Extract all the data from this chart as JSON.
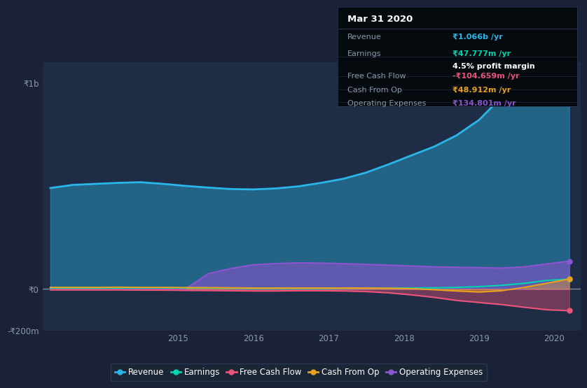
{
  "background_color": "#1b2237",
  "plot_bg_color": "#1e2d45",
  "title_box": {
    "date": "Mar 31 2020",
    "revenue_label": "Revenue",
    "revenue_value": "₹1.066b /yr",
    "earnings_label": "Earnings",
    "earnings_value": "₹47.777m /yr",
    "profit_margin": "4.5% profit margin",
    "fcf_label": "Free Cash Flow",
    "fcf_value": "-₹104.659m /yr",
    "cashop_label": "Cash From Op",
    "cashop_value": "₹48.912m /yr",
    "opex_label": "Operating Expenses",
    "opex_value": "₹134.801m /yr"
  },
  "years": [
    2013.3,
    2013.6,
    2013.9,
    2014.2,
    2014.5,
    2014.8,
    2015.1,
    2015.4,
    2015.7,
    2016.0,
    2016.3,
    2016.6,
    2016.9,
    2017.2,
    2017.5,
    2017.8,
    2018.1,
    2018.4,
    2018.7,
    2019.0,
    2019.3,
    2019.6,
    2019.9,
    2020.2
  ],
  "revenue": [
    490,
    505,
    510,
    515,
    518,
    510,
    500,
    492,
    485,
    483,
    488,
    498,
    515,
    535,
    565,
    605,
    648,
    690,
    745,
    820,
    930,
    1010,
    1060,
    1066
  ],
  "earnings": [
    5,
    5,
    5,
    5,
    6,
    6,
    5,
    5,
    4,
    3,
    3,
    3,
    3,
    4,
    5,
    5,
    5,
    6,
    8,
    12,
    18,
    28,
    42,
    48
  ],
  "free_cash_flow": [
    -4,
    -4,
    -4,
    -4,
    -5,
    -5,
    -6,
    -7,
    -8,
    -9,
    -9,
    -8,
    -8,
    -9,
    -12,
    -18,
    -28,
    -40,
    -55,
    -65,
    -75,
    -88,
    -100,
    -105
  ],
  "cash_from_op": [
    8,
    8,
    8,
    9,
    8,
    8,
    7,
    7,
    6,
    5,
    5,
    5,
    5,
    5,
    5,
    4,
    2,
    -3,
    -9,
    -14,
    -8,
    8,
    28,
    49
  ],
  "operating_expenses": [
    2,
    2,
    2,
    2,
    2,
    2,
    2,
    75,
    100,
    118,
    124,
    127,
    126,
    123,
    120,
    116,
    112,
    108,
    106,
    104,
    102,
    108,
    122,
    135
  ],
  "ylim": [
    -200,
    1100
  ],
  "y1b_val": 1000,
  "y0_val": 0,
  "ym200_val": -200,
  "ytick_labels": [
    "₹1b",
    "₹0",
    "-₹200m"
  ],
  "xtick_years": [
    2015,
    2016,
    2017,
    2018,
    2019,
    2020
  ],
  "colors": {
    "revenue": "#2ab5e8",
    "earnings": "#00d4b0",
    "free_cash_flow": "#e8547a",
    "cash_from_op": "#e8a020",
    "operating_expenses": "#8855cc"
  },
  "legend": [
    {
      "label": "Revenue",
      "color": "#2ab5e8"
    },
    {
      "label": "Earnings",
      "color": "#00d4b0"
    },
    {
      "label": "Free Cash Flow",
      "color": "#e8547a"
    },
    {
      "label": "Cash From Op",
      "color": "#e8a020"
    },
    {
      "label": "Operating Expenses",
      "color": "#8855cc"
    }
  ],
  "grid_color": "#2a3a55",
  "zero_line_color": "#cccccc",
  "info_box_bg": "#000000",
  "info_box_border": "#333355"
}
